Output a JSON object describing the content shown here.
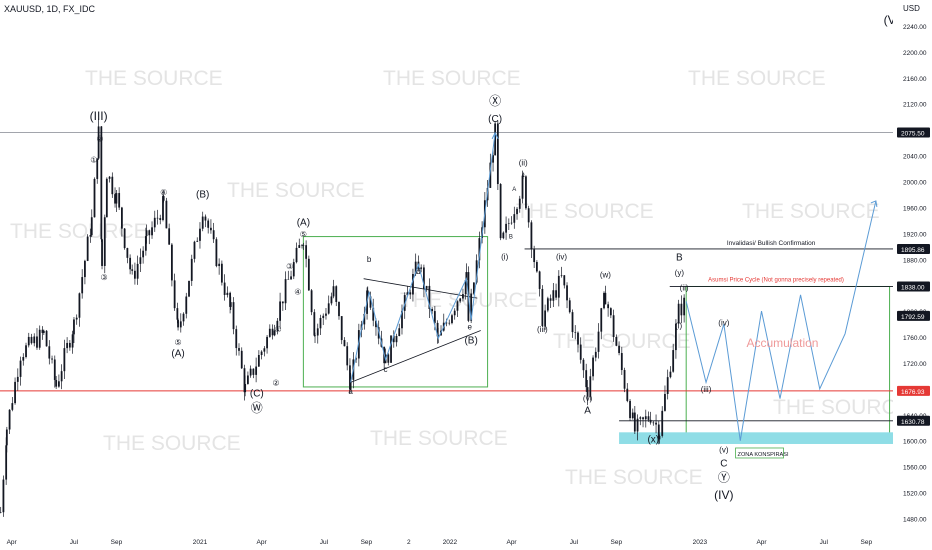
{
  "header": {
    "symbol": "XAUUSD, 1D, FX_IDC",
    "currency": "USD"
  },
  "watermark": "THE SOURCE",
  "colors": {
    "candle": "#131722",
    "projection": "#5b9bd5",
    "support": "#e53935",
    "box": "#4caf50",
    "zone": "#8fdde6",
    "accumulation": "#ef9a9a"
  },
  "chart_data": {
    "type": "candlestick",
    "title": "XAUUSD, 1D, FX_IDC",
    "ylabel": "USD",
    "ylim": [
      1470,
      2280
    ],
    "xlim": [
      "2020-03-15",
      "2023-10-10"
    ],
    "y_ticks": [
      2240,
      2200,
      2160,
      2120,
      2080,
      2040,
      2000,
      1960,
      1920,
      1880,
      1840,
      1800,
      1760,
      1720,
      1680,
      1640,
      1600,
      1560,
      1520,
      1480
    ],
    "x_ticks": [
      {
        "label": "Apr",
        "date": "2020-04-01"
      },
      {
        "label": "Jul",
        "date": "2020-07-01"
      },
      {
        "label": "Sep",
        "date": "2020-09-01"
      },
      {
        "label": "2021",
        "date": "2021-01-01"
      },
      {
        "label": "Apr",
        "date": "2021-04-01"
      },
      {
        "label": "Jul",
        "date": "2021-07-01"
      },
      {
        "label": "Sep",
        "date": "2021-09-01"
      },
      {
        "label": "2",
        "date": "2021-11-02"
      },
      {
        "label": "2022",
        "date": "2022-01-01"
      },
      {
        "label": "Apr",
        "date": "2022-04-01"
      },
      {
        "label": "Jul",
        "date": "2022-07-01"
      },
      {
        "label": "Sep",
        "date": "2022-09-01"
      },
      {
        "label": "2023",
        "date": "2023-01-01"
      },
      {
        "label": "Apr",
        "date": "2023-04-01"
      },
      {
        "label": "Jul",
        "date": "2023-07-01"
      },
      {
        "label": "Sep",
        "date": "2023-09-01"
      }
    ],
    "price_path": [
      [
        "2020-03-16",
        1490
      ],
      [
        "2020-03-25",
        1620
      ],
      [
        "2020-04-14",
        1735
      ],
      [
        "2020-05-18",
        1765
      ],
      [
        "2020-06-05",
        1685
      ],
      [
        "2020-07-01",
        1780
      ],
      [
        "2020-07-27",
        1940
      ],
      [
        "2020-08-06",
        2075
      ],
      [
        "2020-08-11",
        1870
      ],
      [
        "2020-08-18",
        2015
      ],
      [
        "2020-09-01",
        1975
      ],
      [
        "2020-09-24",
        1850
      ],
      [
        "2020-10-15",
        1910
      ],
      [
        "2020-11-09",
        1965
      ],
      [
        "2020-11-30",
        1765
      ],
      [
        "2021-01-05",
        1960
      ],
      [
        "2021-02-15",
        1800
      ],
      [
        "2021-03-08",
        1680
      ],
      [
        "2021-04-20",
        1785
      ],
      [
        "2021-06-01",
        1915
      ],
      [
        "2021-06-18",
        1765
      ],
      [
        "2021-07-15",
        1830
      ],
      [
        "2021-08-09",
        1688
      ],
      [
        "2021-09-03",
        1835
      ],
      [
        "2021-09-29",
        1722
      ],
      [
        "2021-11-16",
        1875
      ],
      [
        "2021-12-15",
        1755
      ],
      [
        "2022-01-25",
        1850
      ],
      [
        "2022-01-28",
        1785
      ],
      [
        "2022-03-08",
        2075
      ],
      [
        "2022-03-16",
        1900
      ],
      [
        "2022-04-18",
        2000
      ],
      [
        "2022-05-16",
        1790
      ],
      [
        "2022-06-13",
        1850
      ],
      [
        "2022-07-21",
        1680
      ],
      [
        "2022-08-16",
        1825
      ],
      [
        "2022-09-28",
        1615
      ],
      [
        "2022-10-21",
        1640
      ],
      [
        "2022-11-03",
        1615
      ],
      [
        "2022-12-01",
        1800
      ],
      [
        "2022-12-12",
        1815
      ]
    ],
    "price_labels": [
      {
        "value": 2075.5,
        "text": "2075.50",
        "style": "dark"
      },
      {
        "value": 1895.86,
        "text": "1895.86",
        "style": "dark"
      },
      {
        "value": 1838.0,
        "text": "1838.00",
        "style": "dark"
      },
      {
        "value": 1792.59,
        "text": "1792.59",
        "style": "dark"
      },
      {
        "value": 1676.93,
        "text": "1676.93",
        "style": "red"
      },
      {
        "value": 1630.78,
        "text": "1630.78",
        "style": "dark"
      }
    ],
    "horizontal_lines": [
      {
        "value": 2075.5,
        "color": "gray",
        "from": "2020-03-15",
        "text": ""
      },
      {
        "value": 1895.86,
        "color": "dark",
        "from": "2022-04-20",
        "text": "Invalidasi/ Bullish Confirmation"
      },
      {
        "value": 1838.0,
        "color": "dark",
        "from": "2022-11-18",
        "text": "Asumsi Price Cycle (Not gonna precisely repeated)"
      },
      {
        "value": 1676.93,
        "color": "red",
        "from": "2020-03-15",
        "text": ""
      },
      {
        "value": 1630.78,
        "color": "dark",
        "from": "2022-09-05",
        "text": ""
      }
    ],
    "green_boxes": [
      {
        "x0": "2021-06-01",
        "x1": "2022-02-25",
        "y0": 1683,
        "y1": 1915
      },
      {
        "x0": "2022-12-12",
        "x1": "2023-10-05",
        "y0": 1605,
        "y1": 1838
      }
    ],
    "zone": {
      "x0": "2022-09-05",
      "x1": "2023-10-10",
      "y0": 1595,
      "y1": 1613,
      "label": "ZONA KONSPIRASI"
    },
    "triangle": [
      [
        "2021-08-09",
        1690
      ],
      [
        "2022-02-15",
        1770
      ],
      [
        "2021-08-28",
        1850
      ],
      [
        "2022-02-10",
        1820
      ]
    ],
    "wave_path": [
      [
        "2021-08-09",
        1690
      ],
      [
        "2021-09-05",
        1830
      ],
      [
        "2021-09-29",
        1725
      ],
      [
        "2021-11-16",
        1872
      ],
      [
        "2021-12-15",
        1758
      ],
      [
        "2022-01-25",
        1850
      ],
      [
        "2022-02-01",
        1786
      ],
      [
        "2022-03-08",
        2075
      ]
    ],
    "projection": [
      [
        "2022-12-12",
        1815
      ],
      [
        "2023-01-10",
        1690
      ],
      [
        "2023-02-05",
        1780
      ],
      [
        "2023-03-01",
        1600
      ],
      [
        "2023-04-01",
        1800
      ],
      [
        "2023-04-28",
        1665
      ],
      [
        "2023-05-28",
        1825
      ],
      [
        "2023-06-25",
        1680
      ],
      [
        "2023-08-01",
        1765
      ],
      [
        "2023-09-15",
        1970
      ]
    ],
    "accumulation_text": "Accumulation",
    "annotations": [
      {
        "t": "(III)",
        "x": "2020-08-06",
        "y": 2095,
        "s": "lg"
      },
      {
        "t": "②",
        "x": "2020-08-08",
        "y": 2062,
        "s": "sm"
      },
      {
        "t": "①",
        "x": "2020-07-30",
        "y": 2029,
        "s": "sm"
      },
      {
        "t": "③",
        "x": "2020-08-14",
        "y": 1848,
        "s": "sm"
      },
      {
        "t": "④",
        "x": "2020-11-09",
        "y": 1979,
        "s": "sm"
      },
      {
        "t": "(B)",
        "x": "2021-01-05",
        "y": 1975,
        "s": "md"
      },
      {
        "t": "⑤",
        "x": "2020-11-30",
        "y": 1748,
        "s": "sm"
      },
      {
        "t": "(A)",
        "x": "2020-11-30",
        "y": 1730,
        "s": "md"
      },
      {
        "t": "①",
        "x": "2021-04-25",
        "y": 1768,
        "s": "sm"
      },
      {
        "t": "(A)",
        "x": "2021-06-01",
        "y": 1932,
        "s": "md"
      },
      {
        "t": "⑤",
        "x": "2021-06-01",
        "y": 1914,
        "s": "sm"
      },
      {
        "t": "③",
        "x": "2021-05-12",
        "y": 1865,
        "s": "sm"
      },
      {
        "t": "④",
        "x": "2021-05-24",
        "y": 1826,
        "s": "sm"
      },
      {
        "t": "②",
        "x": "2021-04-22",
        "y": 1685,
        "s": "sm"
      },
      {
        "t": "(C)",
        "x": "2021-03-25",
        "y": 1668,
        "s": "md"
      },
      {
        "t": "Ⓦ",
        "x": "2021-03-25",
        "y": 1644,
        "s": "lg"
      },
      {
        "t": "b",
        "x": "2021-09-05",
        "y": 1876,
        "s": "sm"
      },
      {
        "t": "a",
        "x": "2021-08-09",
        "y": 1672,
        "s": "sm"
      },
      {
        "t": "c",
        "x": "2021-09-29",
        "y": 1706,
        "s": "sm"
      },
      {
        "t": "d",
        "x": "2021-11-16",
        "y": 1857,
        "s": "sm"
      },
      {
        "t": "e",
        "x": "2022-01-30",
        "y": 1772,
        "s": "sm"
      },
      {
        "t": "(B)",
        "x": "2022-02-01",
        "y": 1750,
        "s": "md"
      },
      {
        "t": "Ⓧ",
        "x": "2022-03-08",
        "y": 2118,
        "s": "lg"
      },
      {
        "t": "(C)",
        "x": "2022-03-08",
        "y": 2092,
        "s": "md"
      },
      {
        "t": "(ii)",
        "x": "2022-04-18",
        "y": 2025,
        "s": "sm"
      },
      {
        "t": "c",
        "x": "2022-04-18",
        "y": 2007,
        "s": "xs"
      },
      {
        "t": "A",
        "x": "2022-04-05",
        "y": 1985,
        "s": "xs"
      },
      {
        "t": "B",
        "x": "2022-03-31",
        "y": 1912,
        "s": "xs"
      },
      {
        "t": "(i)",
        "x": "2022-03-22",
        "y": 1880,
        "s": "sm"
      },
      {
        "t": "(iv)",
        "x": "2022-06-13",
        "y": 1880,
        "s": "sm"
      },
      {
        "t": "(iii)",
        "x": "2022-05-16",
        "y": 1768,
        "s": "sm"
      },
      {
        "t": "(w)",
        "x": "2022-08-16",
        "y": 1852,
        "s": "sm"
      },
      {
        "t": "(v)",
        "x": "2022-07-21",
        "y": 1661,
        "s": "sm"
      },
      {
        "t": "A",
        "x": "2022-07-21",
        "y": 1642,
        "s": "md"
      },
      {
        "t": "(x)",
        "x": "2022-10-25",
        "y": 1597,
        "s": "md"
      },
      {
        "t": "(v)",
        "x": "2023-02-05",
        "y": 1582,
        "s": "sm"
      },
      {
        "t": "C",
        "x": "2023-02-05",
        "y": 1560,
        "s": "md"
      },
      {
        "t": "Ⓨ",
        "x": "2023-02-05",
        "y": 1537,
        "s": "lg"
      },
      {
        "t": "(IV)",
        "x": "2023-02-05",
        "y": 1510,
        "s": "lg"
      },
      {
        "t": "B",
        "x": "2022-12-02",
        "y": 1878,
        "s": "md"
      },
      {
        "t": "(y)",
        "x": "2022-12-02",
        "y": 1855,
        "s": "sm"
      },
      {
        "t": "(ii)",
        "x": "2022-12-09",
        "y": 1832,
        "s": "sm"
      },
      {
        "t": "(i)",
        "x": "2022-12-01",
        "y": 1773,
        "s": "sm"
      },
      {
        "t": "(iv)",
        "x": "2023-02-05",
        "y": 1778,
        "s": "sm"
      },
      {
        "t": "(iii)",
        "x": "2023-01-10",
        "y": 1675,
        "s": "sm"
      },
      {
        "t": "(V)",
        "x": "2023-10-08",
        "y": 2243,
        "s": "lg"
      }
    ]
  }
}
